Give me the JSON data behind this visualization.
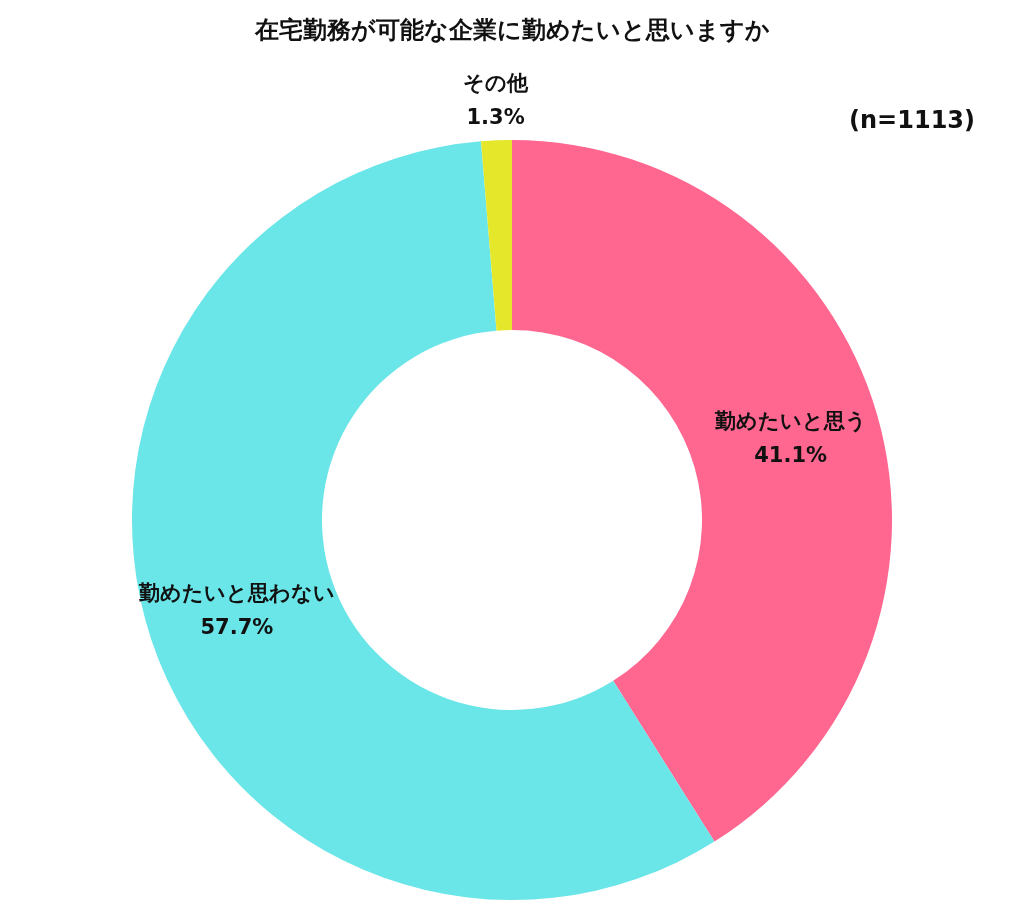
{
  "chart_data": {
    "type": "donut",
    "title": "在宅勤務が可能な企業に勤めたいと思いますか",
    "annotations": [
      "(n=1113)"
    ],
    "categories": [
      "勤めたいと思う",
      "勤めたいと思わない",
      "その他"
    ],
    "values": [
      41.1,
      57.7,
      1.3
    ],
    "value_labels": [
      "41.1%",
      "57.7%",
      "1.3%"
    ],
    "colors": [
      "#ff6690",
      "#6ae5e8",
      "#e5e82a"
    ],
    "legend": false
  }
}
